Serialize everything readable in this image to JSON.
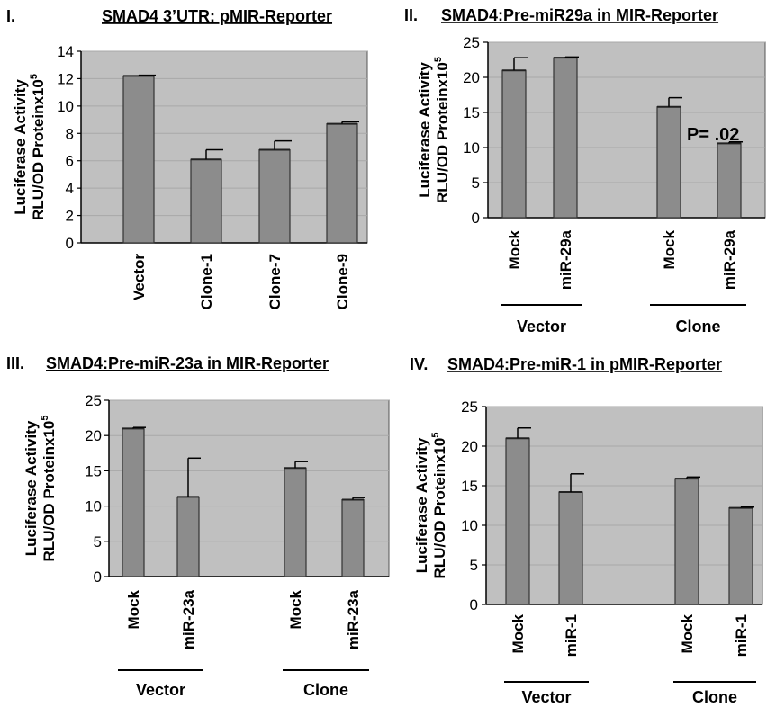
{
  "chart_data": [
    {
      "type": "bar",
      "panel_label": "I.",
      "title": "SMAD4 3’UTR: pMIR-Reporter",
      "ylabel_line1": "Luciferase Activity",
      "ylabel_line2": "RLU/OD Proteinx10",
      "ylabel_exp": "5",
      "ylim": [
        0,
        14
      ],
      "yticks": [
        0,
        2,
        4,
        6,
        8,
        10,
        12,
        14
      ],
      "grid": true,
      "categories": [
        "Vector",
        "Clone-1",
        "Clone-7",
        "Clone-9"
      ],
      "values": [
        12.2,
        6.1,
        6.8,
        8.7
      ],
      "error": [
        0.05,
        0.7,
        0.65,
        0.15
      ],
      "groups": []
    },
    {
      "type": "bar",
      "panel_label": "II.",
      "title": "SMAD4:Pre-miR29a in MIR-Reporter",
      "ylabel_line1": "Luciferase Activity",
      "ylabel_line2": "RLU/OD Proteinx10",
      "ylabel_exp": "5",
      "ylim": [
        0,
        25
      ],
      "yticks": [
        0,
        5,
        10,
        15,
        20,
        25
      ],
      "grid": true,
      "categories": [
        "Mock",
        "miR-29a",
        "Mock",
        "miR-29a"
      ],
      "values": [
        21.0,
        22.8,
        15.8,
        10.6
      ],
      "error": [
        1.8,
        0.1,
        1.3,
        0.2
      ],
      "groups": [
        "Vector",
        "Clone"
      ],
      "annotation": "P= .02"
    },
    {
      "type": "bar",
      "panel_label": "III.",
      "title": "SMAD4:Pre-miR-23a in MIR-Reporter",
      "ylabel_line1": "Luciferase Activity",
      "ylabel_line2": "RLU/OD Proteinx10",
      "ylabel_exp": "5",
      "ylim": [
        0,
        25
      ],
      "yticks": [
        0,
        5,
        10,
        15,
        20,
        25
      ],
      "grid": true,
      "categories": [
        "Mock",
        "miR-23a",
        "Mock",
        "miR-23a"
      ],
      "values": [
        21.0,
        11.3,
        15.4,
        10.9
      ],
      "error": [
        0.15,
        5.5,
        0.9,
        0.3
      ],
      "groups": [
        "Vector",
        "Clone"
      ]
    },
    {
      "type": "bar",
      "panel_label": "IV.",
      "title": "SMAD4:Pre-miR-1 in pMIR-Reporter",
      "ylabel_line1": "Luciferase Activity",
      "ylabel_line2": "RLU/OD Proteinx10",
      "ylabel_exp": "5",
      "ylim": [
        0,
        25
      ],
      "yticks": [
        0,
        5,
        10,
        15,
        20,
        25
      ],
      "grid": true,
      "categories": [
        "Mock",
        "miR-1",
        "Mock",
        "miR-1"
      ],
      "values": [
        21.0,
        14.2,
        15.9,
        12.2
      ],
      "error": [
        1.3,
        2.3,
        0.2,
        0.1
      ],
      "groups": [
        "Vector",
        "Clone"
      ]
    }
  ],
  "style": {
    "plot_bg": "#c0c0c0",
    "bar_fill": "#8c8c8c",
    "bar_stroke": "#333333",
    "grid_color": "#a8a8a8"
  }
}
